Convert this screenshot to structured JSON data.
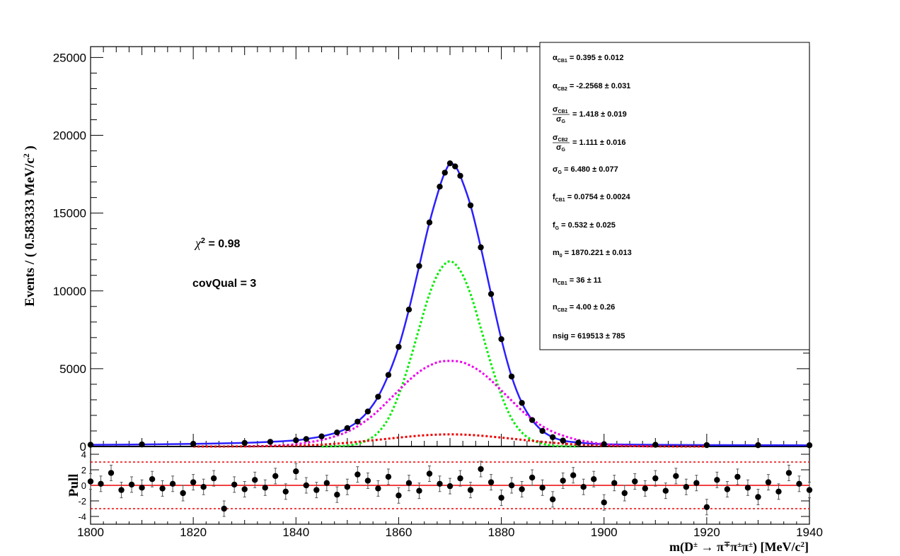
{
  "chart_data": [
    {
      "type": "scatter",
      "panel": "main",
      "xlabel": {
        "prefix": "m(D",
        "sup1": "±",
        "mid": " → π",
        "sup2": "∓",
        "mid2": "π",
        "sup3": "±",
        "mid3": "π",
        "sup4": "±",
        "suffix": ") [MeV/c",
        "sup5": "2",
        "end": "]"
      },
      "ylabel": {
        "text": "Events / ( 0.583333  MeV/c",
        "sup": "2",
        "end": " )"
      },
      "xlim": [
        1800,
        1940
      ],
      "ylim": [
        0,
        25700
      ],
      "x_ticks": [
        1800,
        1820,
        1840,
        1860,
        1880,
        1900,
        1920,
        1940
      ],
      "y_ticks": [
        0,
        5000,
        10000,
        15000,
        20000,
        25000
      ],
      "grid": false,
      "annotations": [
        {
          "label": "χ",
          "sup": "2",
          "value": " = 0.98"
        },
        {
          "label": "covQual = 3"
        }
      ],
      "parameters": [
        {
          "sym": "α",
          "sub": "CB1",
          "value": " =  0.395 ± 0.012"
        },
        {
          "sym": "α",
          "sub": "CB2",
          "value": " = -2.2568 ± 0.031"
        },
        {
          "sym": "σ",
          "sub": "CB1",
          "den": "σ",
          "densub": "G",
          "value": " =  1.418 ± 0.019"
        },
        {
          "sym": "σ",
          "sub": "CB2",
          "den": "σ",
          "densub": "G",
          "value": " =  1.111 ± 0.016"
        },
        {
          "sym": "σ",
          "sub": "G",
          "value": " =  6.480 ± 0.077"
        },
        {
          "sym": "f",
          "sub": "CB1",
          "value": " =  0.0754 ± 0.0024"
        },
        {
          "sym": "f",
          "sub": "G",
          "value": " =  0.532 ± 0.025"
        },
        {
          "sym": "m",
          "sub": "0",
          "value": " =  1870.221 ± 0.013"
        },
        {
          "sym": "n",
          "sub": "CB1",
          "value": " =  36 ± 11"
        },
        {
          "sym": "n",
          "sub": "CB2",
          "value": " =  4.00 ± 0.26"
        },
        {
          "sym": "nsig",
          "sub": "",
          "value": " =  619513 ± 785"
        }
      ],
      "series": [
        {
          "role": "data",
          "color": "#000000",
          "x": [
            1800,
            1810,
            1820,
            1830,
            1835,
            1840,
            1842,
            1845,
            1848,
            1850,
            1852,
            1854,
            1856,
            1858,
            1860,
            1862,
            1864,
            1866,
            1868,
            1869,
            1870,
            1871,
            1872,
            1874,
            1876,
            1878,
            1880,
            1882,
            1884,
            1886,
            1888,
            1890,
            1892,
            1895,
            1900,
            1910,
            1920,
            1930,
            1940
          ],
          "y": [
            110,
            130,
            170,
            230,
            300,
            400,
            480,
            650,
            900,
            1180,
            1600,
            2250,
            3200,
            4600,
            6400,
            8800,
            11600,
            14400,
            16700,
            17600,
            18200,
            18000,
            17400,
            15500,
            12800,
            9800,
            6900,
            4500,
            2800,
            1700,
            1000,
            600,
            380,
            250,
            150,
            110,
            90,
            85,
            80
          ]
        },
        {
          "role": "total-fit",
          "color": "#2b1fff",
          "x": [
            1800,
            1810,
            1820,
            1830,
            1835,
            1840,
            1842,
            1845,
            1848,
            1850,
            1852,
            1854,
            1856,
            1858,
            1860,
            1862,
            1864,
            1866,
            1868,
            1869,
            1870,
            1871,
            1872,
            1874,
            1876,
            1878,
            1880,
            1882,
            1884,
            1886,
            1888,
            1890,
            1892,
            1895,
            1900,
            1910,
            1920,
            1930,
            1940
          ],
          "y": [
            110,
            130,
            170,
            230,
            300,
            400,
            480,
            650,
            900,
            1180,
            1600,
            2250,
            3200,
            4600,
            6400,
            8800,
            11600,
            14400,
            16700,
            17600,
            18200,
            18000,
            17400,
            15500,
            12800,
            9800,
            6900,
            4500,
            2800,
            1700,
            1000,
            600,
            380,
            250,
            150,
            110,
            90,
            85,
            80
          ]
        },
        {
          "role": "component-green",
          "color": "#00ee00",
          "x": [
            1845,
            1848,
            1850,
            1852,
            1854,
            1856,
            1858,
            1860,
            1862,
            1864,
            1866,
            1868,
            1870,
            1872,
            1874,
            1876,
            1878,
            1880,
            1882,
            1884,
            1886,
            1888,
            1890,
            1892,
            1895
          ],
          "y": [
            0,
            20,
            60,
            180,
            420,
            900,
            1800,
            3300,
            5300,
            7600,
            9800,
            11300,
            11900,
            11300,
            9800,
            7600,
            5300,
            3300,
            1800,
            900,
            420,
            180,
            60,
            20,
            0
          ]
        },
        {
          "role": "component-magenta",
          "color": "#ee00ee",
          "x": [
            1830,
            1835,
            1840,
            1845,
            1848,
            1850,
            1852,
            1854,
            1856,
            1858,
            1860,
            1862,
            1864,
            1866,
            1868,
            1870,
            1872,
            1874,
            1876,
            1878,
            1880,
            1882,
            1884,
            1886,
            1888,
            1890,
            1892,
            1895,
            1900,
            1905,
            1910
          ],
          "y": [
            10,
            40,
            150,
            420,
            700,
            950,
            1300,
            1750,
            2300,
            2950,
            3600,
            4250,
            4800,
            5200,
            5450,
            5500,
            5450,
            5200,
            4800,
            4250,
            3600,
            2950,
            2300,
            1750,
            1300,
            950,
            700,
            420,
            150,
            40,
            10
          ]
        },
        {
          "role": "component-red",
          "color": "#ee0000",
          "x": [
            1820,
            1830,
            1840,
            1845,
            1850,
            1855,
            1860,
            1865,
            1870,
            1875,
            1880,
            1885,
            1890,
            1895,
            1900,
            1910,
            1920
          ],
          "y": [
            0,
            10,
            50,
            120,
            240,
            400,
            570,
            720,
            780,
            720,
            570,
            400,
            240,
            120,
            50,
            10,
            0
          ]
        }
      ]
    },
    {
      "type": "scatter",
      "panel": "pull",
      "ylabel": "Pull",
      "xlim": [
        1800,
        1940
      ],
      "ylim": [
        -5,
        5
      ],
      "y_ticks": [
        -4,
        -2,
        0,
        2,
        4
      ],
      "reference_lines": [
        {
          "y": 0,
          "style": "solid",
          "color": "#ee0000"
        },
        {
          "y": 3,
          "style": "dotted",
          "color": "#ee0000"
        },
        {
          "y": -3,
          "style": "dotted",
          "color": "#ee0000"
        }
      ],
      "series": [
        {
          "role": "pull",
          "color": "#000000",
          "error": 1.0,
          "x": [
            1800,
            1802,
            1804,
            1806,
            1808,
            1810,
            1812,
            1814,
            1816,
            1818,
            1820,
            1822,
            1824,
            1826,
            1828,
            1830,
            1832,
            1834,
            1836,
            1838,
            1840,
            1842,
            1844,
            1846,
            1848,
            1850,
            1852,
            1854,
            1856,
            1858,
            1860,
            1862,
            1864,
            1866,
            1868,
            1870,
            1872,
            1874,
            1876,
            1878,
            1880,
            1882,
            1884,
            1886,
            1888,
            1890,
            1892,
            1894,
            1896,
            1898,
            1900,
            1902,
            1904,
            1906,
            1908,
            1910,
            1912,
            1914,
            1916,
            1918,
            1920,
            1922,
            1924,
            1926,
            1928,
            1930,
            1932,
            1934,
            1936,
            1938,
            1940
          ],
          "y": [
            0.5,
            0.2,
            1.6,
            -0.6,
            0.1,
            -0.3,
            0.8,
            -0.4,
            0.2,
            -1.0,
            0.4,
            -0.2,
            0.9,
            -3.0,
            0.1,
            -0.5,
            0.7,
            -0.3,
            1.2,
            -0.8,
            1.8,
            0.0,
            -0.6,
            0.3,
            -1.2,
            -0.2,
            1.4,
            0.6,
            -0.4,
            1.1,
            -1.3,
            0.3,
            -0.7,
            1.5,
            0.2,
            -0.1,
            0.9,
            -0.6,
            2.1,
            0.4,
            -1.6,
            0.0,
            -0.5,
            1.0,
            -0.3,
            -1.8,
            0.6,
            1.3,
            -0.2,
            0.8,
            -2.2,
            0.3,
            -1.0,
            0.5,
            -0.4,
            0.9,
            -0.7,
            1.2,
            -0.2,
            0.3,
            -2.8,
            0.7,
            -0.5,
            1.1,
            -0.3,
            -1.5,
            0.4,
            -0.8,
            1.6,
            0.2,
            -0.6
          ]
        }
      ]
    }
  ]
}
